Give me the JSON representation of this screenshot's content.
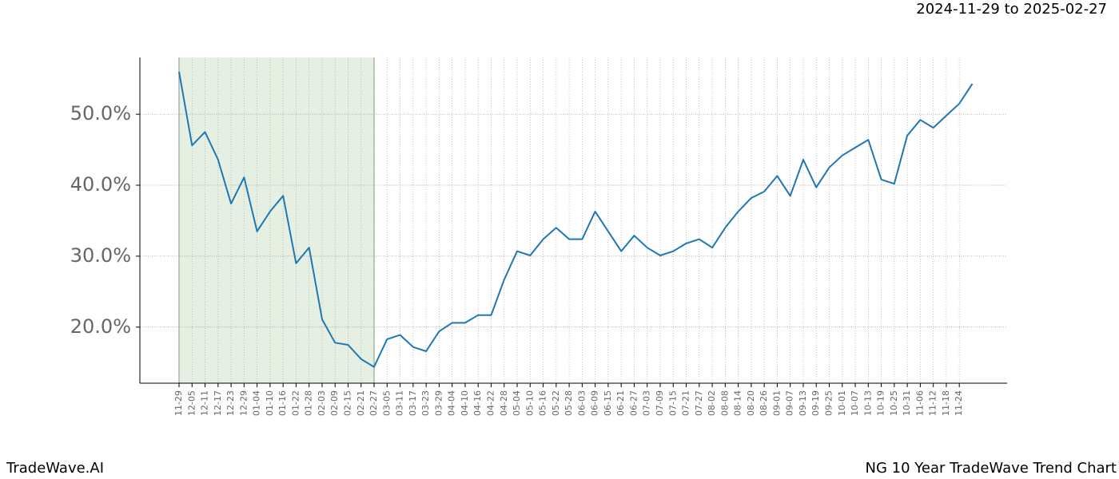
{
  "chart_data": {
    "type": "line",
    "subtitle": "2024-11-29 to 2025-02-27",
    "brand": "TradeWave.AI",
    "title": "NG 10 Year TradeWave Trend Chart",
    "categories": [
      "11-29",
      "12-05",
      "12-11",
      "12-17",
      "12-23",
      "12-29",
      "01-04",
      "01-10",
      "01-16",
      "01-22",
      "01-28",
      "02-03",
      "02-09",
      "02-15",
      "02-21",
      "02-27",
      "03-05",
      "03-11",
      "03-17",
      "03-23",
      "03-29",
      "04-04",
      "04-10",
      "04-16",
      "04-22",
      "04-28",
      "05-04",
      "05-10",
      "05-16",
      "05-22",
      "05-28",
      "06-03",
      "06-09",
      "06-15",
      "06-21",
      "06-27",
      "07-03",
      "07-09",
      "07-15",
      "07-21",
      "07-27",
      "08-02",
      "08-08",
      "08-14",
      "08-20",
      "08-26",
      "09-01",
      "09-07",
      "09-13",
      "09-19",
      "09-25",
      "10-01",
      "10-07",
      "10-13",
      "10-19",
      "10-25",
      "10-31",
      "11-06",
      "11-12",
      "11-18",
      "11-24",
      null
    ],
    "values": [
      56.0,
      45.6,
      47.5,
      43.6,
      37.4,
      41.1,
      33.5,
      36.3,
      38.5,
      29.0,
      31.2,
      21.1,
      17.8,
      17.5,
      15.5,
      14.4,
      18.3,
      18.9,
      17.2,
      16.6,
      19.4,
      20.6,
      20.6,
      21.7,
      21.7,
      26.7,
      30.7,
      30.1,
      32.4,
      34.0,
      32.4,
      32.4,
      36.3,
      33.5,
      30.7,
      32.9,
      31.2,
      30.1,
      30.7,
      31.8,
      32.4,
      31.2,
      34.0,
      36.3,
      38.2,
      39.1,
      41.3,
      38.5,
      43.6,
      39.7,
      42.5,
      44.2,
      45.3,
      46.4,
      40.8,
      40.2,
      47.0,
      49.2,
      48.1,
      49.8,
      51.5,
      54.3
    ],
    "color": "#1f77b4",
    "ylim": [
      12.1,
      58
    ],
    "yticks": [
      {
        "value": 20,
        "label": "20.0%"
      },
      {
        "value": 30,
        "label": "30.0%"
      },
      {
        "value": 40,
        "label": "40.0%"
      },
      {
        "value": 50,
        "label": "50.0%"
      }
    ],
    "grid": true,
    "shaded_range": [
      "11-29",
      "02-27"
    ]
  }
}
